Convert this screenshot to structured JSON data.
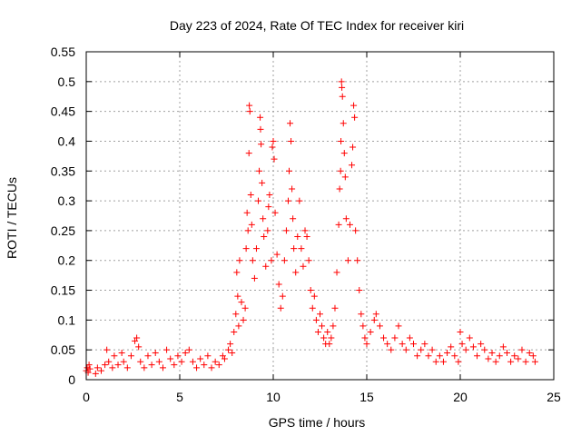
{
  "chart_data": {
    "type": "scatter",
    "title": "Day 223 of 2024, Rate Of TEC Index for receiver kiri",
    "xlabel": "GPS time / hours",
    "ylabel": "ROTI / TECUs",
    "xlim": [
      0,
      25
    ],
    "ylim": [
      0,
      0.55
    ],
    "xticks": [
      0,
      5,
      10,
      15,
      20,
      25
    ],
    "xtick_labels": [
      "0",
      "5",
      "10",
      "15",
      "20",
      "25"
    ],
    "yticks": [
      0,
      0.05,
      0.1,
      0.15,
      0.2,
      0.25,
      0.3,
      0.35,
      0.4,
      0.45,
      0.5,
      0.55
    ],
    "ytick_labels": [
      "0",
      "0.05",
      "0.1",
      "0.15",
      "0.2",
      "0.25",
      "0.3",
      "0.35",
      "0.4",
      "0.45",
      "0.5",
      "0.55"
    ],
    "grid": true,
    "marker": "plus",
    "color": "#ff0000",
    "series": [
      {
        "values": [
          [
            0.0,
            0.015
          ],
          [
            0.05,
            0.02
          ],
          [
            0.1,
            0.012
          ],
          [
            0.15,
            0.025
          ],
          [
            0.2,
            0.018
          ],
          [
            0.5,
            0.01
          ],
          [
            0.6,
            0.02
          ],
          [
            0.8,
            0.015
          ],
          [
            1.0,
            0.025
          ],
          [
            1.1,
            0.05
          ],
          [
            1.2,
            0.03
          ],
          [
            1.4,
            0.02
          ],
          [
            1.5,
            0.04
          ],
          [
            1.7,
            0.025
          ],
          [
            1.9,
            0.045
          ],
          [
            2.0,
            0.03
          ],
          [
            2.2,
            0.02
          ],
          [
            2.4,
            0.04
          ],
          [
            2.6,
            0.065
          ],
          [
            2.7,
            0.07
          ],
          [
            2.8,
            0.055
          ],
          [
            2.9,
            0.03
          ],
          [
            3.1,
            0.02
          ],
          [
            3.3,
            0.04
          ],
          [
            3.5,
            0.025
          ],
          [
            3.7,
            0.045
          ],
          [
            3.9,
            0.03
          ],
          [
            4.1,
            0.02
          ],
          [
            4.3,
            0.05
          ],
          [
            4.5,
            0.035
          ],
          [
            4.7,
            0.025
          ],
          [
            4.9,
            0.04
          ],
          [
            5.1,
            0.03
          ],
          [
            5.3,
            0.045
          ],
          [
            5.5,
            0.05
          ],
          [
            5.7,
            0.03
          ],
          [
            5.9,
            0.02
          ],
          [
            6.1,
            0.035
          ],
          [
            6.3,
            0.025
          ],
          [
            6.5,
            0.04
          ],
          [
            6.7,
            0.02
          ],
          [
            6.9,
            0.03
          ],
          [
            7.1,
            0.025
          ],
          [
            7.3,
            0.04
          ],
          [
            7.4,
            0.035
          ],
          [
            7.6,
            0.05
          ],
          [
            7.7,
            0.06
          ],
          [
            7.8,
            0.045
          ],
          [
            7.9,
            0.08
          ],
          [
            8.0,
            0.11
          ],
          [
            8.05,
            0.18
          ],
          [
            8.1,
            0.14
          ],
          [
            8.15,
            0.09
          ],
          [
            8.2,
            0.2
          ],
          [
            8.3,
            0.13
          ],
          [
            8.4,
            0.1
          ],
          [
            8.5,
            0.12
          ],
          [
            8.55,
            0.22
          ],
          [
            8.6,
            0.28
          ],
          [
            8.65,
            0.25
          ],
          [
            8.7,
            0.38
          ],
          [
            8.72,
            0.46
          ],
          [
            8.75,
            0.45
          ],
          [
            8.8,
            0.31
          ],
          [
            8.85,
            0.26
          ],
          [
            8.9,
            0.2
          ],
          [
            9.0,
            0.17
          ],
          [
            9.1,
            0.22
          ],
          [
            9.2,
            0.3
          ],
          [
            9.25,
            0.35
          ],
          [
            9.3,
            0.44
          ],
          [
            9.32,
            0.42
          ],
          [
            9.35,
            0.395
          ],
          [
            9.4,
            0.33
          ],
          [
            9.45,
            0.27
          ],
          [
            9.5,
            0.24
          ],
          [
            9.6,
            0.19
          ],
          [
            9.7,
            0.25
          ],
          [
            9.75,
            0.29
          ],
          [
            9.8,
            0.31
          ],
          [
            9.9,
            0.2
          ],
          [
            9.95,
            0.39
          ],
          [
            10.0,
            0.4
          ],
          [
            10.05,
            0.37
          ],
          [
            10.1,
            0.28
          ],
          [
            10.2,
            0.21
          ],
          [
            10.3,
            0.16
          ],
          [
            10.4,
            0.12
          ],
          [
            10.5,
            0.14
          ],
          [
            10.6,
            0.2
          ],
          [
            10.7,
            0.25
          ],
          [
            10.8,
            0.3
          ],
          [
            10.85,
            0.35
          ],
          [
            10.9,
            0.43
          ],
          [
            10.95,
            0.4
          ],
          [
            11.0,
            0.32
          ],
          [
            11.05,
            0.27
          ],
          [
            11.1,
            0.22
          ],
          [
            11.2,
            0.18
          ],
          [
            11.3,
            0.24
          ],
          [
            11.4,
            0.3
          ],
          [
            11.5,
            0.22
          ],
          [
            11.6,
            0.19
          ],
          [
            11.7,
            0.25
          ],
          [
            11.8,
            0.24
          ],
          [
            11.9,
            0.2
          ],
          [
            12.0,
            0.15
          ],
          [
            12.1,
            0.12
          ],
          [
            12.2,
            0.14
          ],
          [
            12.3,
            0.1
          ],
          [
            12.4,
            0.08
          ],
          [
            12.5,
            0.11
          ],
          [
            12.6,
            0.09
          ],
          [
            12.7,
            0.07
          ],
          [
            12.8,
            0.06
          ],
          [
            12.9,
            0.08
          ],
          [
            13.0,
            0.06
          ],
          [
            13.1,
            0.07
          ],
          [
            13.2,
            0.09
          ],
          [
            13.3,
            0.12
          ],
          [
            13.4,
            0.18
          ],
          [
            13.5,
            0.26
          ],
          [
            13.55,
            0.32
          ],
          [
            13.6,
            0.35
          ],
          [
            13.62,
            0.4
          ],
          [
            13.65,
            0.5
          ],
          [
            13.67,
            0.49
          ],
          [
            13.7,
            0.475
          ],
          [
            13.75,
            0.43
          ],
          [
            13.8,
            0.38
          ],
          [
            13.85,
            0.34
          ],
          [
            13.9,
            0.27
          ],
          [
            14.0,
            0.2
          ],
          [
            14.1,
            0.26
          ],
          [
            14.2,
            0.36
          ],
          [
            14.25,
            0.39
          ],
          [
            14.3,
            0.46
          ],
          [
            14.35,
            0.44
          ],
          [
            14.4,
            0.25
          ],
          [
            14.5,
            0.2
          ],
          [
            14.6,
            0.15
          ],
          [
            14.7,
            0.11
          ],
          [
            14.8,
            0.09
          ],
          [
            14.9,
            0.07
          ],
          [
            15.0,
            0.06
          ],
          [
            15.2,
            0.08
          ],
          [
            15.4,
            0.1
          ],
          [
            15.5,
            0.11
          ],
          [
            15.7,
            0.09
          ],
          [
            15.9,
            0.07
          ],
          [
            16.1,
            0.06
          ],
          [
            16.3,
            0.05
          ],
          [
            16.5,
            0.07
          ],
          [
            16.7,
            0.09
          ],
          [
            16.9,
            0.06
          ],
          [
            17.1,
            0.05
          ],
          [
            17.3,
            0.07
          ],
          [
            17.5,
            0.06
          ],
          [
            17.7,
            0.04
          ],
          [
            17.9,
            0.05
          ],
          [
            18.1,
            0.06
          ],
          [
            18.3,
            0.04
          ],
          [
            18.5,
            0.05
          ],
          [
            18.7,
            0.03
          ],
          [
            18.9,
            0.04
          ],
          [
            19.1,
            0.03
          ],
          [
            19.3,
            0.045
          ],
          [
            19.5,
            0.055
          ],
          [
            19.7,
            0.04
          ],
          [
            19.9,
            0.03
          ],
          [
            20.0,
            0.08
          ],
          [
            20.1,
            0.06
          ],
          [
            20.3,
            0.05
          ],
          [
            20.5,
            0.07
          ],
          [
            20.7,
            0.055
          ],
          [
            20.9,
            0.04
          ],
          [
            21.1,
            0.06
          ],
          [
            21.3,
            0.05
          ],
          [
            21.5,
            0.035
          ],
          [
            21.7,
            0.045
          ],
          [
            21.9,
            0.03
          ],
          [
            22.1,
            0.04
          ],
          [
            22.3,
            0.055
          ],
          [
            22.5,
            0.045
          ],
          [
            22.7,
            0.03
          ],
          [
            22.9,
            0.04
          ],
          [
            23.1,
            0.035
          ],
          [
            23.3,
            0.05
          ],
          [
            23.5,
            0.03
          ],
          [
            23.7,
            0.045
          ],
          [
            23.9,
            0.04
          ],
          [
            24.0,
            0.03
          ]
        ]
      }
    ]
  }
}
